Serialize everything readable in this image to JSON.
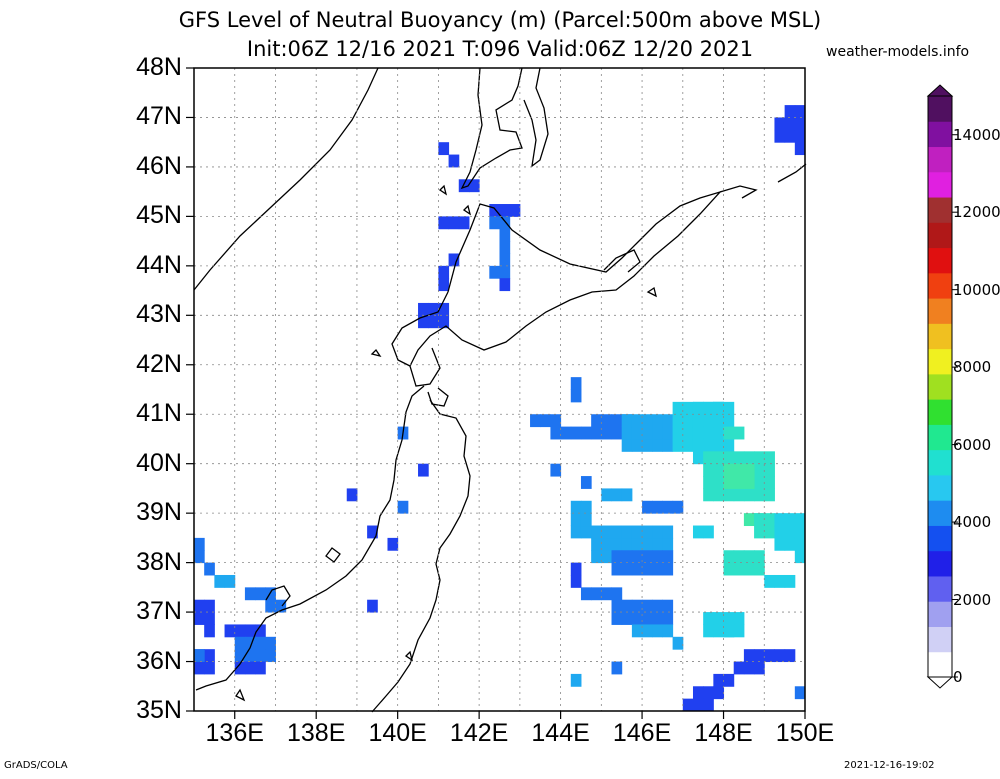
{
  "header": {
    "title_line1": "GFS Level of Neutral Buoyancy (m) (Parcel:500m above MSL)",
    "title_line2": "Init:06Z 12/16 2021 T:096 Valid:06Z 12/20 2021",
    "credit": "weather-models.info"
  },
  "map": {
    "lat_labels": [
      "48N",
      "47N",
      "46N",
      "45N",
      "44N",
      "43N",
      "42N",
      "41N",
      "40N",
      "39N",
      "38N",
      "37N",
      "36N",
      "35N"
    ],
    "lon_labels": [
      "136E",
      "138E",
      "140E",
      "142E",
      "144E",
      "146E",
      "148E",
      "150E"
    ],
    "lat_range": [
      35,
      48
    ],
    "lon_range": [
      135,
      150
    ],
    "grid": true,
    "grid_step_deg": 1
  },
  "colorbar": {
    "labels": [
      "14000",
      "12000",
      "10000",
      "8000",
      "6000",
      "4000",
      "2000",
      "0"
    ],
    "range": [
      0,
      15000
    ],
    "colors": [
      "#ffffff",
      "#d0d0f5",
      "#a0a0f0",
      "#6060f0",
      "#2020e8",
      "#1450f0",
      "#1e8cf0",
      "#28c8f0",
      "#20e0d0",
      "#20e890",
      "#30e030",
      "#a0e020",
      "#f0f020",
      "#f0c020",
      "#f08020",
      "#f04010",
      "#e01010",
      "#b01818",
      "#a03030",
      "#e020e0",
      "#c020c0",
      "#8010a0",
      "#501060"
    ]
  },
  "footer": {
    "left": "GrADS/COLA",
    "right": "2021-12-16-19:02"
  }
}
